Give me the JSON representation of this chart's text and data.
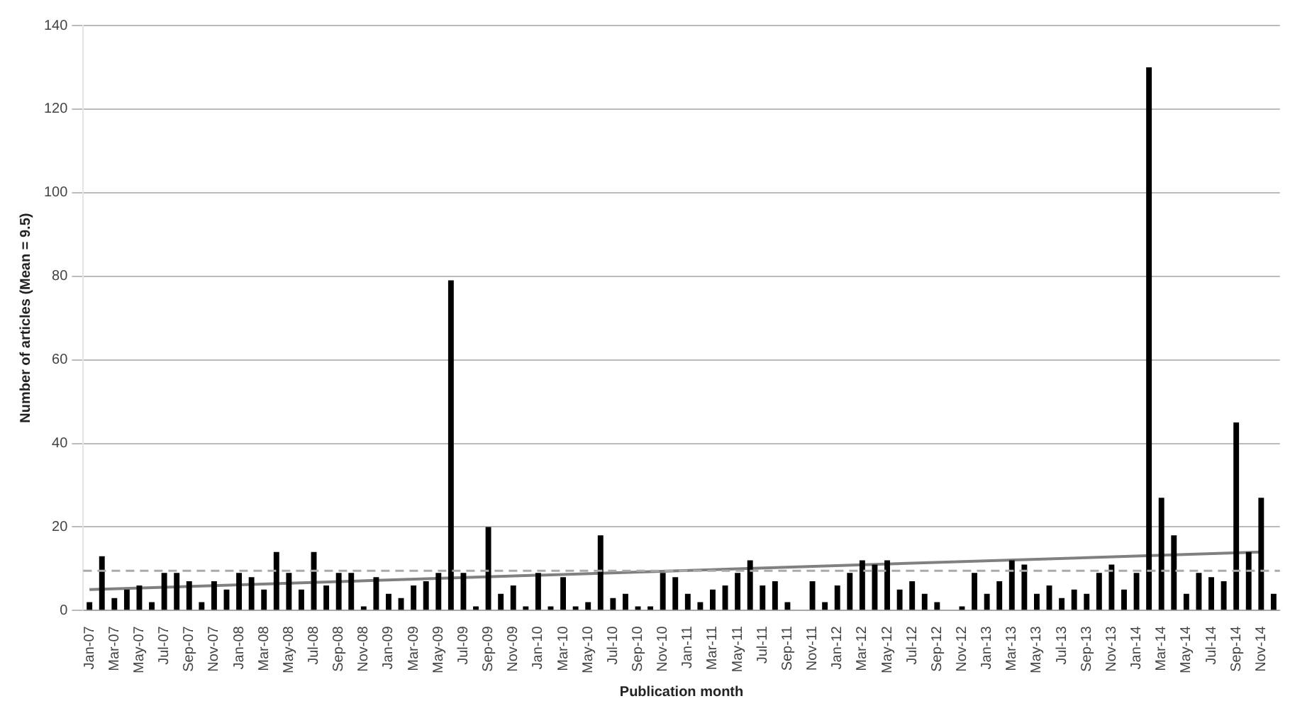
{
  "chart_data": {
    "type": "bar",
    "xlabel": "Publication month",
    "ylabel": "Number of articles (Mean = 9.5)",
    "categories": [
      "Jan-07",
      null,
      "Mar-07",
      null,
      "May-07",
      null,
      "Jul-07",
      null,
      "Sep-07",
      null,
      "Nov-07",
      null,
      "Jan-08",
      null,
      "Mar-08",
      null,
      "May-08",
      null,
      "Jul-08",
      null,
      "Sep-08",
      null,
      "Nov-08",
      null,
      "Jan-09",
      null,
      "Mar-09",
      null,
      "May-09",
      null,
      "Jul-09",
      null,
      "Sep-09",
      null,
      "Nov-09",
      null,
      "Jan-10",
      null,
      "Mar-10",
      null,
      "May-10",
      null,
      "Jul-10",
      null,
      "Sep-10",
      null,
      "Nov-10",
      null,
      "Jan-11",
      null,
      "Mar-11",
      null,
      "May-11",
      null,
      "Jul-11",
      null,
      "Sep-11",
      null,
      "Nov-11",
      null,
      "Jan-12",
      null,
      "Mar-12",
      null,
      "May-12",
      null,
      "Jul-12",
      null,
      "Sep-12",
      null,
      "Nov-12",
      null,
      "Jan-13",
      null,
      "Mar-13",
      null,
      "May-13",
      null,
      "Jul-13",
      null,
      "Sep-13",
      null,
      "Nov-13",
      null,
      "Jan-14",
      null,
      "Mar-14",
      null,
      "May-14",
      null,
      "Jul-14",
      null,
      "Sep-14",
      null,
      "Nov-14",
      null
    ],
    "series": [
      {
        "color": "#000000",
        "values": [
          2,
          13,
          3,
          5,
          6,
          2,
          9,
          9,
          7,
          2,
          7,
          5,
          9,
          8,
          5,
          14,
          9,
          5,
          14,
          6,
          9,
          9,
          1,
          8,
          4,
          3,
          6,
          7,
          9,
          79,
          9,
          1,
          20,
          4,
          6,
          1,
          9,
          1,
          8,
          1,
          2,
          18,
          3,
          4,
          1,
          1,
          9,
          8,
          4,
          2,
          5,
          6,
          9,
          12,
          6,
          7,
          2,
          0,
          7,
          2,
          6,
          9,
          12,
          11,
          12,
          5,
          7,
          4,
          2,
          0,
          1,
          9,
          4,
          7,
          12,
          11,
          4,
          6,
          3,
          5,
          4,
          9,
          11,
          5,
          9,
          130,
          27,
          18,
          4,
          9,
          8,
          7,
          45,
          14,
          27,
          4
        ]
      },
      {
        "type": "line",
        "color": "#808080",
        "x": [
          "Jan-07",
          "Nov-14"
        ],
        "values": [
          5,
          14
        ]
      }
    ],
    "ylim": [
      0,
      140
    ],
    "yticks": [
      0,
      20,
      40,
      60,
      80,
      100,
      120,
      140
    ],
    "grid": "y",
    "legend": false,
    "marker": "none",
    "ref_lines": [
      {
        "axis": "y",
        "value": 9.5,
        "color": "#aaaaaa",
        "line_style": "dashed"
      }
    ]
  }
}
